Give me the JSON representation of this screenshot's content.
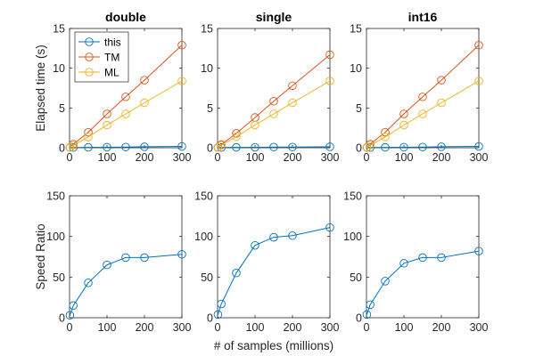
{
  "chart_data": [
    {
      "type": "line",
      "title": "double",
      "ylabel": "Elapsed time (s)",
      "xlim": [
        0,
        300
      ],
      "ylim": [
        0,
        15
      ],
      "xticks": [
        0,
        100,
        200,
        300
      ],
      "yticks": [
        0,
        5,
        10,
        15
      ],
      "legend": "top-left",
      "x": [
        1,
        10,
        50,
        100,
        150,
        200,
        300
      ],
      "series": [
        {
          "name": "this",
          "color": "#0072BD",
          "values": [
            0.02,
            0.03,
            0.05,
            0.07,
            0.09,
            0.12,
            0.17
          ]
        },
        {
          "name": "TM",
          "color": "#D95319",
          "values": [
            0.05,
            0.45,
            1.95,
            4.25,
            6.4,
            8.5,
            12.9
          ]
        },
        {
          "name": "ML",
          "color": "#EDB120",
          "values": [
            0.03,
            0.3,
            1.35,
            2.85,
            4.25,
            5.65,
            8.4
          ]
        }
      ]
    },
    {
      "type": "line",
      "title": "single",
      "xlim": [
        0,
        300
      ],
      "ylim": [
        0,
        15
      ],
      "xticks": [
        0,
        100,
        200,
        300
      ],
      "yticks": [
        0,
        5,
        10,
        15
      ],
      "x": [
        1,
        10,
        50,
        100,
        150,
        200,
        300
      ],
      "series": [
        {
          "color": "#0072BD",
          "values": [
            0.02,
            0.03,
            0.05,
            0.06,
            0.08,
            0.09,
            0.12
          ]
        },
        {
          "color": "#D95319",
          "values": [
            0.05,
            0.4,
            1.8,
            3.8,
            5.85,
            7.8,
            11.7
          ]
        },
        {
          "color": "#EDB120",
          "values": [
            0.03,
            0.3,
            1.4,
            2.85,
            4.25,
            5.65,
            8.4
          ]
        }
      ]
    },
    {
      "type": "line",
      "title": "int16",
      "xlim": [
        0,
        300
      ],
      "ylim": [
        0,
        15
      ],
      "xticks": [
        0,
        100,
        200,
        300
      ],
      "yticks": [
        0,
        5,
        10,
        15
      ],
      "x": [
        1,
        10,
        50,
        100,
        150,
        200,
        300
      ],
      "series": [
        {
          "color": "#0072BD",
          "values": [
            0.02,
            0.03,
            0.05,
            0.07,
            0.09,
            0.12,
            0.17
          ]
        },
        {
          "color": "#D95319",
          "values": [
            0.05,
            0.45,
            1.95,
            4.25,
            6.4,
            8.5,
            12.9
          ]
        },
        {
          "color": "#EDB120",
          "values": [
            0.03,
            0.3,
            1.35,
            2.85,
            4.25,
            5.65,
            8.4
          ]
        }
      ]
    },
    {
      "type": "line",
      "ylabel": "Speed Ratio",
      "xlim": [
        0,
        300
      ],
      "ylim": [
        0,
        150
      ],
      "xticks": [
        0,
        100,
        200,
        300
      ],
      "yticks": [
        0,
        50,
        100,
        150
      ],
      "x": [
        1,
        10,
        50,
        100,
        150,
        200,
        300
      ],
      "series": [
        {
          "color": "#0072BD",
          "values": [
            3,
            15,
            43,
            65,
            74,
            74,
            78
          ]
        }
      ]
    },
    {
      "type": "line",
      "xlabel": "# of samples (millions)",
      "xlim": [
        0,
        300
      ],
      "ylim": [
        0,
        150
      ],
      "xticks": [
        0,
        100,
        200,
        300
      ],
      "yticks": [
        0,
        50,
        100,
        150
      ],
      "x": [
        1,
        10,
        50,
        100,
        150,
        200,
        300
      ],
      "series": [
        {
          "color": "#0072BD",
          "values": [
            4,
            17,
            55,
            89,
            99,
            101,
            111
          ]
        }
      ]
    },
    {
      "type": "line",
      "xlim": [
        0,
        300
      ],
      "ylim": [
        0,
        150
      ],
      "xticks": [
        0,
        100,
        200,
        300
      ],
      "yticks": [
        0,
        50,
        100,
        150
      ],
      "x": [
        1,
        10,
        50,
        100,
        150,
        200,
        300
      ],
      "series": [
        {
          "color": "#0072BD",
          "values": [
            4,
            16,
            45,
            67,
            74,
            74,
            82
          ]
        }
      ]
    }
  ]
}
